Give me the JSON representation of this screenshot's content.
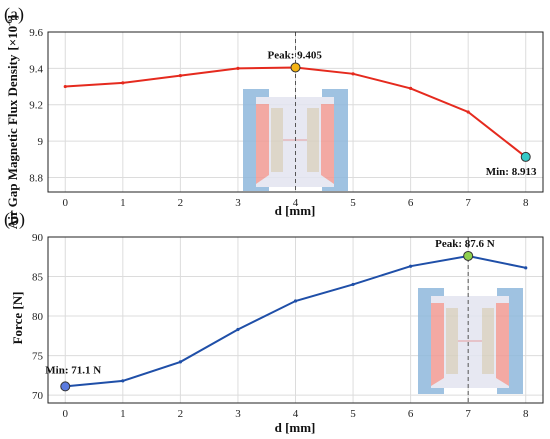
{
  "chart_data": [
    {
      "type": "line",
      "panel_label": "(a)",
      "xlabel": "d [mm]",
      "ylabel": "Air Gap Magnetic Flux Density",
      "ylabel_unit": "[×10",
      "ylabel_exp": "-6",
      "ylabel_close": "]",
      "x": [
        0,
        1,
        2,
        3,
        4,
        5,
        6,
        7,
        8
      ],
      "xlim": [
        -0.3,
        8.3
      ],
      "ylim": [
        8.72,
        9.6
      ],
      "xticks": [
        "0",
        "1",
        "2",
        "3",
        "4",
        "5",
        "6",
        "7",
        "8"
      ],
      "yticks": [
        8.8,
        9,
        9.2,
        9.4,
        9.6
      ],
      "ytick_labels": [
        "8.8",
        "9",
        "9.2",
        "9.4",
        "9.6"
      ],
      "series": [
        {
          "values": [
            9.3,
            9.32,
            9.36,
            9.4,
            9.405,
            9.37,
            9.29,
            9.16,
            8.913
          ],
          "color": "#e52a1e"
        }
      ],
      "annotations": {
        "peak": {
          "x": 4,
          "y": 9.405,
          "label": "Peak: 9.405",
          "color": "#f5b414"
        },
        "min": {
          "x": 8,
          "y": 8.913,
          "label": "Min: 8.913",
          "color": "#36c9c6"
        }
      },
      "grid": true
    },
    {
      "type": "line",
      "panel_label": "(b)",
      "xlabel": "d [mm]",
      "ylabel": "Force [N]",
      "x": [
        0,
        1,
        2,
        3,
        4,
        5,
        6,
        7,
        8
      ],
      "xlim": [
        -0.3,
        8.3
      ],
      "ylim": [
        69,
        90
      ],
      "xticks": [
        "0",
        "1",
        "2",
        "3",
        "4",
        "5",
        "6",
        "7",
        "8"
      ],
      "yticks": [
        70,
        75,
        80,
        85,
        90
      ],
      "ytick_labels": [
        "70",
        "75",
        "80",
        "85",
        "90"
      ],
      "series": [
        {
          "values": [
            71.1,
            71.8,
            74.2,
            78.3,
            81.9,
            84.0,
            86.3,
            87.6,
            86.1
          ],
          "color": "#1f4fa8"
        }
      ],
      "annotations": {
        "peak": {
          "x": 7,
          "y": 87.6,
          "label": "Peak: 87.6 N",
          "color": "#8fd14f"
        },
        "min": {
          "x": 0,
          "y": 71.1,
          "label": "Min: 71.1 N",
          "color": "#5b7be0"
        }
      },
      "grid": true
    }
  ]
}
